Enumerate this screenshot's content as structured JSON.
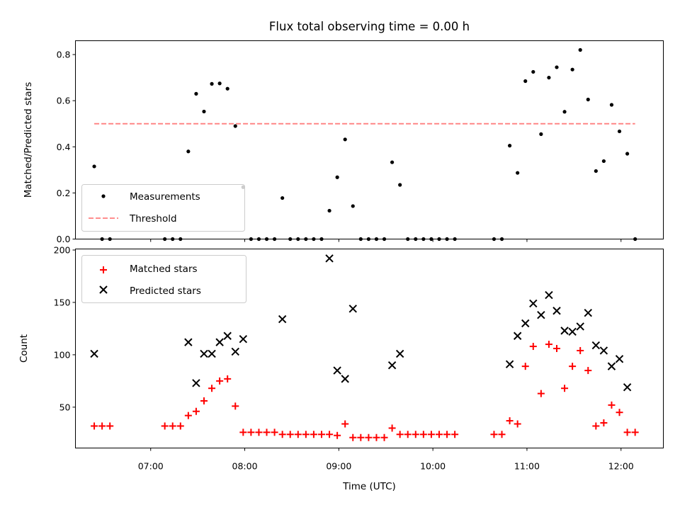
{
  "chart_data": {
    "title": "Flux total observing time = 0.00 h",
    "xlabel": "Time (UTC)",
    "x_ticks": [
      "07:00",
      "08:00",
      "09:00",
      "10:00",
      "11:00",
      "12:00"
    ],
    "x_range": [
      "06:12",
      "12:27"
    ],
    "panels": [
      {
        "type": "scatter",
        "ylabel": "Matched/Predicted stars",
        "ylim": [
          0,
          0.86
        ],
        "y_ticks": [
          "0.0",
          "0.2",
          "0.4",
          "0.6",
          "0.8"
        ],
        "legend_position": "lower-left",
        "threshold": {
          "name": "Threshold",
          "value": 0.5,
          "x_start": "06:24",
          "x_end": "12:09",
          "color": "#ff7f7f",
          "style": "dashed"
        },
        "series": [
          {
            "name": "Measurements",
            "color": "#000000",
            "marker": "dot",
            "points": [
              [
                "06:24",
                0.315
              ],
              [
                "06:29",
                0.0
              ],
              [
                "06:34",
                0.0
              ],
              [
                "07:09",
                0.0
              ],
              [
                "07:14",
                0.0
              ],
              [
                "07:19",
                0.0
              ],
              [
                "07:24",
                0.38
              ],
              [
                "07:29",
                0.63
              ],
              [
                "07:34",
                0.553
              ],
              [
                "07:39",
                0.673
              ],
              [
                "07:44",
                0.675
              ],
              [
                "07:49",
                0.652
              ],
              [
                "07:54",
                0.49
              ],
              [
                "07:59",
                0.225
              ],
              [
                "08:04",
                0.0
              ],
              [
                "08:09",
                0.0
              ],
              [
                "08:14",
                0.0
              ],
              [
                "08:19",
                0.0
              ],
              [
                "08:24",
                0.178
              ],
              [
                "08:29",
                0.0
              ],
              [
                "08:34",
                0.0
              ],
              [
                "08:39",
                0.0
              ],
              [
                "08:44",
                0.0
              ],
              [
                "08:49",
                0.0
              ],
              [
                "08:54",
                0.123
              ],
              [
                "08:59",
                0.268
              ],
              [
                "09:04",
                0.432
              ],
              [
                "09:09",
                0.143
              ],
              [
                "09:14",
                0.0
              ],
              [
                "09:19",
                0.0
              ],
              [
                "09:24",
                0.0
              ],
              [
                "09:29",
                0.0
              ],
              [
                "09:34",
                0.333
              ],
              [
                "09:39",
                0.235
              ],
              [
                "09:44",
                0.0
              ],
              [
                "09:49",
                0.0
              ],
              [
                "09:54",
                0.0
              ],
              [
                "09:59",
                0.0
              ],
              [
                "10:04",
                0.0
              ],
              [
                "10:09",
                0.0
              ],
              [
                "10:14",
                0.0
              ],
              [
                "10:39",
                0.0
              ],
              [
                "10:44",
                0.0
              ],
              [
                "10:49",
                0.405
              ],
              [
                "10:54",
                0.287
              ],
              [
                "10:59",
                0.685
              ],
              [
                "11:04",
                0.725
              ],
              [
                "11:09",
                0.455
              ],
              [
                "11:14",
                0.7
              ],
              [
                "11:19",
                0.745
              ],
              [
                "11:24",
                0.552
              ],
              [
                "11:29",
                0.735
              ],
              [
                "11:34",
                0.82
              ],
              [
                "11:39",
                0.605
              ],
              [
                "11:44",
                0.295
              ],
              [
                "11:49",
                0.338
              ],
              [
                "11:54",
                0.582
              ],
              [
                "11:59",
                0.467
              ],
              [
                "12:04",
                0.37
              ],
              [
                "12:09",
                0.0
              ]
            ]
          }
        ]
      },
      {
        "type": "scatter",
        "ylabel": "Count",
        "ylim": [
          11,
          201
        ],
        "y_ticks": [
          "50",
          "100",
          "150",
          "200"
        ],
        "legend_position": "upper-left",
        "series": [
          {
            "name": "Matched stars",
            "color": "#ff0000",
            "marker": "plus",
            "points": [
              [
                "06:24",
                32
              ],
              [
                "06:29",
                32
              ],
              [
                "06:34",
                32
              ],
              [
                "07:09",
                32
              ],
              [
                "07:14",
                32
              ],
              [
                "07:19",
                32
              ],
              [
                "07:24",
                42
              ],
              [
                "07:29",
                46
              ],
              [
                "07:34",
                56
              ],
              [
                "07:39",
                68
              ],
              [
                "07:44",
                75
              ],
              [
                "07:49",
                77
              ],
              [
                "07:54",
                51
              ],
              [
                "07:59",
                26
              ],
              [
                "08:04",
                26
              ],
              [
                "08:09",
                26
              ],
              [
                "08:14",
                26
              ],
              [
                "08:19",
                26
              ],
              [
                "08:24",
                24
              ],
              [
                "08:29",
                24
              ],
              [
                "08:34",
                24
              ],
              [
                "08:39",
                24
              ],
              [
                "08:44",
                24
              ],
              [
                "08:49",
                24
              ],
              [
                "08:54",
                24
              ],
              [
                "08:59",
                23
              ],
              [
                "09:04",
                34
              ],
              [
                "09:09",
                21
              ],
              [
                "09:14",
                21
              ],
              [
                "09:19",
                21
              ],
              [
                "09:24",
                21
              ],
              [
                "09:29",
                21
              ],
              [
                "09:34",
                30
              ],
              [
                "09:39",
                24
              ],
              [
                "09:44",
                24
              ],
              [
                "09:49",
                24
              ],
              [
                "09:54",
                24
              ],
              [
                "09:59",
                24
              ],
              [
                "10:04",
                24
              ],
              [
                "10:09",
                24
              ],
              [
                "10:14",
                24
              ],
              [
                "10:39",
                24
              ],
              [
                "10:44",
                24
              ],
              [
                "10:49",
                37
              ],
              [
                "10:54",
                34
              ],
              [
                "10:59",
                89
              ],
              [
                "11:04",
                108
              ],
              [
                "11:09",
                63
              ],
              [
                "11:14",
                110
              ],
              [
                "11:19",
                106
              ],
              [
                "11:24",
                68
              ],
              [
                "11:29",
                89
              ],
              [
                "11:34",
                104
              ],
              [
                "11:39",
                85
              ],
              [
                "11:44",
                32
              ],
              [
                "11:49",
                35
              ],
              [
                "11:54",
                52
              ],
              [
                "11:59",
                45
              ],
              [
                "12:04",
                26
              ],
              [
                "12:09",
                26
              ]
            ]
          },
          {
            "name": "Predicted stars",
            "color": "#000000",
            "marker": "x",
            "points": [
              [
                "06:24",
                101
              ],
              [
                "07:24",
                112
              ],
              [
                "07:29",
                73
              ],
              [
                "07:34",
                101
              ],
              [
                "07:39",
                101
              ],
              [
                "07:44",
                112
              ],
              [
                "07:49",
                118
              ],
              [
                "07:54",
                103
              ],
              [
                "07:59",
                115
              ],
              [
                "08:24",
                134
              ],
              [
                "08:54",
                192
              ],
              [
                "08:59",
                85
              ],
              [
                "09:04",
                77
              ],
              [
                "09:09",
                144
              ],
              [
                "09:34",
                90
              ],
              [
                "09:39",
                101
              ],
              [
                "10:49",
                91
              ],
              [
                "10:54",
                118
              ],
              [
                "10:59",
                130
              ],
              [
                "11:04",
                149
              ],
              [
                "11:09",
                138
              ],
              [
                "11:14",
                157
              ],
              [
                "11:19",
                142
              ],
              [
                "11:24",
                123
              ],
              [
                "11:29",
                122
              ],
              [
                "11:34",
                127
              ],
              [
                "11:39",
                140
              ],
              [
                "11:44",
                109
              ],
              [
                "11:49",
                104
              ],
              [
                "11:54",
                89
              ],
              [
                "11:59",
                96
              ],
              [
                "12:04",
                69
              ]
            ]
          }
        ]
      }
    ]
  }
}
